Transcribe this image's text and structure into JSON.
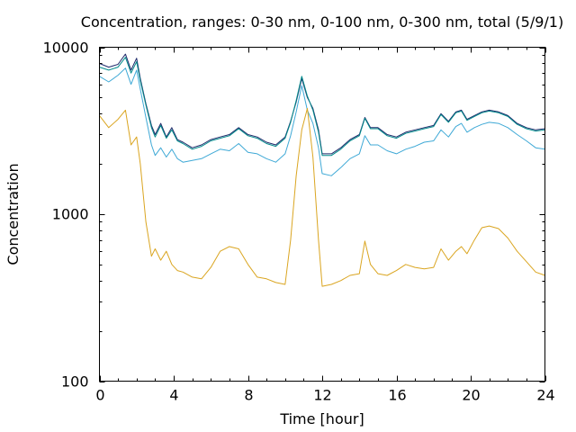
{
  "chart_data": {
    "type": "line",
    "title": "Concentration, ranges: 0-30 nm, 0-100 nm, 0-300 nm, total (5/9/1)",
    "xlabel": "Time [hour]",
    "ylabel": "Concentration",
    "xlim": [
      0,
      24
    ],
    "ylim": [
      100,
      10000
    ],
    "yscale": "log",
    "xticks": [
      0,
      4,
      8,
      12,
      16,
      20,
      24
    ],
    "xtick_labels": [
      "0",
      "4",
      "8",
      "12",
      "16",
      "20",
      "24"
    ],
    "yticks": [
      100,
      1000,
      10000
    ],
    "ytick_labels": [
      "100",
      "1000",
      "10000"
    ],
    "grid": false,
    "legend": "none",
    "x": [
      0,
      0.5,
      1,
      1.4,
      1.7,
      2,
      2.2,
      2.5,
      2.8,
      3,
      3.3,
      3.6,
      3.9,
      4.2,
      4.5,
      5,
      5.5,
      6,
      6.5,
      7,
      7.5,
      8,
      8.5,
      9,
      9.5,
      10,
      10.3,
      10.6,
      10.9,
      11.2,
      11.5,
      11.8,
      12,
      12.5,
      13,
      13.5,
      14,
      14.3,
      14.6,
      15,
      15.5,
      16,
      16.5,
      17,
      17.5,
      18,
      18.4,
      18.8,
      19.2,
      19.5,
      19.8,
      20.2,
      20.6,
      21,
      21.5,
      22,
      22.5,
      23,
      23.5,
      24
    ],
    "series": [
      {
        "color": "#1f2a6b",
        "values": [
          8000,
          7600,
          7900,
          9100,
          7300,
          8600,
          6500,
          4600,
          3400,
          3000,
          3500,
          2900,
          3300,
          2800,
          2700,
          2500,
          2600,
          2800,
          2900,
          3000,
          3300,
          3000,
          2900,
          2700,
          2600,
          2900,
          3600,
          4700,
          6500,
          5000,
          4300,
          3200,
          2300,
          2300,
          2500,
          2800,
          3000,
          3800,
          3300,
          3300,
          3000,
          2900,
          3100,
          3200,
          3300,
          3400,
          4000,
          3600,
          4100,
          4200,
          3700,
          3900,
          4100,
          4200,
          4100,
          3900,
          3500,
          3300,
          3200,
          3250
        ]
      },
      {
        "color": "#008b8b",
        "values": [
          7600,
          7300,
          7600,
          8700,
          7000,
          8200,
          6300,
          4500,
          3300,
          2900,
          3400,
          2850,
          3200,
          2750,
          2650,
          2450,
          2550,
          2750,
          2850,
          2950,
          3250,
          2950,
          2850,
          2650,
          2550,
          2850,
          3550,
          4800,
          6700,
          5100,
          4200,
          3100,
          2250,
          2250,
          2450,
          2750,
          2950,
          3750,
          3250,
          3250,
          2950,
          2850,
          3050,
          3150,
          3250,
          3350,
          3950,
          3550,
          4050,
          4150,
          3650,
          3850,
          4050,
          4150,
          4050,
          3850,
          3450,
          3250,
          3150,
          3200
        ]
      },
      {
        "color": "#3fa9d6",
        "values": [
          6700,
          6200,
          6800,
          7500,
          6000,
          7300,
          5600,
          3800,
          2600,
          2250,
          2500,
          2200,
          2450,
          2150,
          2050,
          2100,
          2150,
          2300,
          2450,
          2400,
          2650,
          2350,
          2300,
          2150,
          2050,
          2300,
          2950,
          4100,
          5900,
          4200,
          3500,
          2500,
          1750,
          1700,
          1900,
          2150,
          2300,
          2950,
          2600,
          2600,
          2400,
          2300,
          2450,
          2550,
          2700,
          2750,
          3200,
          2900,
          3350,
          3500,
          3100,
          3300,
          3450,
          3550,
          3500,
          3300,
          3000,
          2750,
          2500,
          2450
        ]
      },
      {
        "color": "#daa520",
        "values": [
          3900,
          3300,
          3700,
          4200,
          2600,
          2900,
          2000,
          900,
          560,
          620,
          530,
          600,
          500,
          460,
          450,
          420,
          410,
          480,
          600,
          640,
          620,
          500,
          420,
          410,
          390,
          380,
          700,
          1700,
          3200,
          4300,
          2200,
          700,
          370,
          380,
          400,
          430,
          440,
          690,
          500,
          440,
          430,
          460,
          500,
          480,
          470,
          480,
          620,
          530,
          600,
          640,
          580,
          700,
          830,
          850,
          820,
          720,
          600,
          520,
          450,
          430
        ]
      }
    ]
  }
}
